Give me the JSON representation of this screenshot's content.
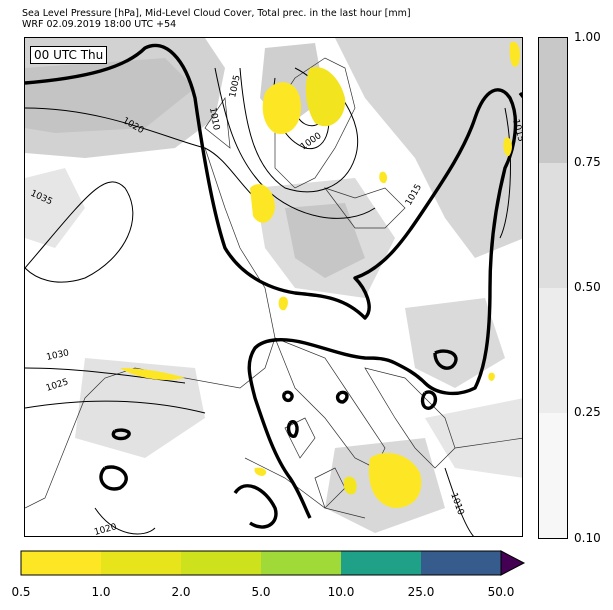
{
  "header": {
    "line1": "Sea Level Pressure [hPa], Mid-Level Cloud Cover, Total prec. in the last hour [mm]",
    "line2": "WRF 02.09.2019 18:00 UTC +54"
  },
  "map": {
    "time_label": "00 UTC Thu",
    "isobar_labels": [
      "1005",
      "1010",
      "1020",
      "1000",
      "1035",
      "1015",
      "1015",
      "1030",
      "1025",
      "1020",
      "1010"
    ]
  },
  "cloud_colorbar": {
    "ticks": [
      "1.00",
      "0.75",
      "0.50",
      "0.25",
      "0.10"
    ],
    "colors": [
      "#c8c8c8",
      "#dedede",
      "#ececec",
      "#f7f7f7"
    ]
  },
  "precip_colorbar": {
    "ticks": [
      "0.5",
      "1.0",
      "2.0",
      "5.0",
      "10.0",
      "25.0",
      "50.0"
    ],
    "colors": [
      "#fde725",
      "#e8e41c",
      "#cde11d",
      "#a0da39",
      "#1fa187",
      "#365c8d",
      "#440154"
    ]
  }
}
